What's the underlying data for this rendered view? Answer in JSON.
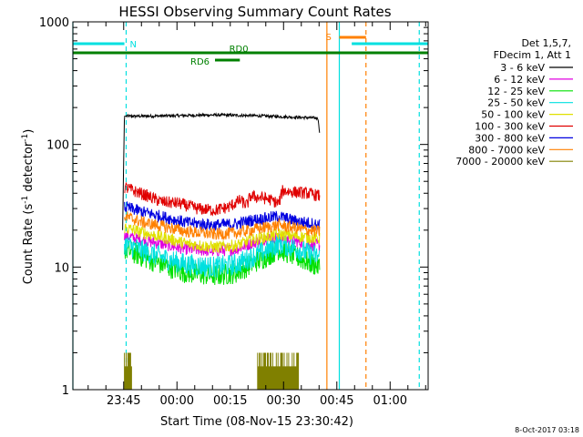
{
  "chart_data": {
    "type": "line",
    "title": "HESSI Observing Summary Count Rates",
    "xlabel": "Start Time (08-Nov-15 23:30:42)",
    "ylabel": "Count Rate (s⁻¹ detector⁻¹)",
    "ylabel_main": "Count Rate (s",
    "ylabel_sup1": "-1",
    "ylabel_mid": " detector",
    "ylabel_sup2": "-1",
    "ylabel_end": ")",
    "footer": "8-Oct-2017 03:18",
    "x_axis": {
      "unit": "minutes since 23:30:42",
      "range": [
        0,
        100
      ],
      "tick_labels": [
        {
          "label": "23:45",
          "t": 14.3
        },
        {
          "label": "00:00",
          "t": 29.3
        },
        {
          "label": "00:15",
          "t": 44.3
        },
        {
          "label": "00:30",
          "t": 59.3
        },
        {
          "label": "00:45",
          "t": 74.3
        },
        {
          "label": "01:00",
          "t": 89.3
        }
      ]
    },
    "y_axis": {
      "scale": "log",
      "range": [
        1,
        1000
      ],
      "tick_labels": [
        {
          "label": "1",
          "v": 1
        },
        {
          "label": "10",
          "v": 10
        },
        {
          "label": "100",
          "v": 100
        },
        {
          "label": "1000",
          "v": 1000
        }
      ]
    },
    "legend": {
      "placement": "top-right",
      "header": [
        "Det 1,5,7,",
        "FDecim 1, Att 1"
      ],
      "entries": [
        {
          "label": "3 - 6 keV",
          "color": "#000000"
        },
        {
          "label": "6 - 12 keV",
          "color": "#e000e0"
        },
        {
          "label": "12 - 25 keV",
          "color": "#00e000"
        },
        {
          "label": "25 - 50 keV",
          "color": "#00e0e0"
        },
        {
          "label": "50 - 100 keV",
          "color": "#e0e000"
        },
        {
          "label": "100 - 300 keV",
          "color": "#e00000"
        },
        {
          "label": "300 - 800 keV",
          "color": "#0000e0"
        },
        {
          "label": "800 - 7000 keV",
          "color": "#ff8000"
        },
        {
          "label": "7000 - 20000 keV",
          "color": "#808000"
        }
      ]
    },
    "series": [
      {
        "name": "3 - 6 keV",
        "color": "#000000",
        "t": [
          14,
          14.5,
          20,
          30,
          40,
          50,
          60,
          69,
          69.5
        ],
        "v": [
          20,
          170,
          170,
          172,
          174,
          172,
          168,
          164,
          120
        ]
      },
      {
        "name": "6 - 12 keV",
        "color": "#e000e0",
        "t": [
          14.5,
          20,
          27,
          32,
          40,
          46,
          50,
          54,
          58,
          62,
          66,
          69.5
        ],
        "v": [
          18,
          16.5,
          15,
          14,
          13.5,
          14,
          15.5,
          17,
          17.5,
          16.5,
          15.5,
          15
        ]
      },
      {
        "name": "12 - 25 keV",
        "color": "#00e000",
        "t": [
          14.5,
          20,
          27,
          32,
          40,
          46,
          50,
          54,
          58,
          62,
          66,
          69.5
        ],
        "v": [
          14,
          12,
          10,
          9,
          8.5,
          9,
          10.5,
          12,
          14,
          12.5,
          11,
          10
        ]
      },
      {
        "name": "25 - 50 keV",
        "color": "#00e0e0",
        "t": [
          14.5,
          20,
          27,
          32,
          40,
          46,
          50,
          54,
          58,
          62,
          66,
          69.5
        ],
        "v": [
          15.5,
          13.5,
          11.5,
          10.5,
          10,
          10.5,
          12,
          13.5,
          15.5,
          14.5,
          13,
          12
        ]
      },
      {
        "name": "50 - 100 keV",
        "color": "#e0e000",
        "t": [
          14.5,
          20,
          27,
          32,
          40,
          46,
          50,
          54,
          58,
          62,
          66,
          69.5
        ],
        "v": [
          21,
          19,
          17,
          15.5,
          14.5,
          15,
          16.5,
          17.5,
          18.5,
          18,
          17.5,
          17
        ]
      },
      {
        "name": "100 - 300 keV",
        "color": "#e00000",
        "t": [
          14.5,
          17,
          21,
          25,
          30,
          35,
          40,
          44,
          47,
          49,
          50,
          55,
          58,
          59,
          62,
          66,
          69.5
        ],
        "v": [
          45,
          42,
          38,
          34,
          33,
          30,
          29,
          31,
          35,
          32,
          38,
          36,
          33,
          42,
          41,
          40,
          38
        ]
      },
      {
        "name": "300 - 800 keV",
        "color": "#0000e0",
        "t": [
          14.5,
          20,
          27,
          32,
          40,
          46,
          50,
          54,
          58,
          62,
          66,
          69.5
        ],
        "v": [
          31,
          28,
          25,
          23,
          22,
          22.5,
          24,
          25,
          26,
          24,
          23,
          22
        ]
      },
      {
        "name": "800 - 7000 keV",
        "color": "#ff8000",
        "t": [
          14.5,
          20,
          27,
          32,
          40,
          46,
          50,
          54,
          58,
          62,
          66,
          69.5
        ],
        "v": [
          26,
          23,
          21,
          19.5,
          18.5,
          19,
          20,
          21,
          22,
          21,
          20,
          19.5
        ]
      },
      {
        "name": "7000 - 20000 keV",
        "color": "#808000",
        "t": [
          14,
          14.5,
          16.5,
          17,
          51.5,
          52,
          63.5,
          64
        ],
        "v": [
          1,
          2,
          2,
          1,
          1,
          2,
          2,
          1
        ]
      }
    ],
    "flags": [
      {
        "label": "N",
        "color": "#00e0e0",
        "bars": [
          [
            0,
            14.5
          ],
          [
            78.5,
            100
          ]
        ]
      },
      {
        "label": "S",
        "color": "#ff8000",
        "bars": [
          [
            75,
            82.5
          ]
        ]
      },
      {
        "label": "RD0",
        "color": "#008000",
        "bars": [
          [
            0,
            100
          ]
        ]
      },
      {
        "label": "RD6",
        "color": "#008000",
        "bars": [
          [
            40,
            47
          ]
        ]
      }
    ],
    "vertical_markers": [
      {
        "t": 0,
        "color": "#00e0e0",
        "style": "solid"
      },
      {
        "t": 15,
        "color": "#00e0e0",
        "style": "dashed"
      },
      {
        "t": 71.5,
        "color": "#ff8000",
        "style": "solid"
      },
      {
        "t": 75,
        "color": "#00e0e0",
        "style": "solid"
      },
      {
        "t": 82.5,
        "color": "#ff8000",
        "style": "dashed"
      },
      {
        "t": 97.5,
        "color": "#00e0e0",
        "style": "dashed"
      }
    ],
    "grid": false
  }
}
